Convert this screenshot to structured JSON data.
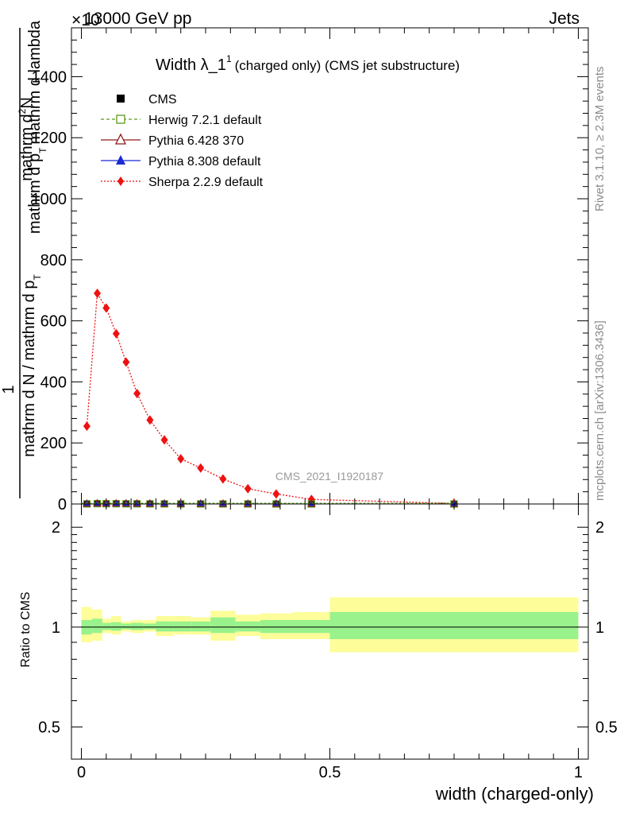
{
  "header": {
    "left": "13000 GeV pp",
    "right": "Jets",
    "exponent": "×10"
  },
  "side_labels": {
    "rivet": "Rivet 3.1.10, ≥ 2.3M events",
    "mcplots": "mcplots.cern.ch [arXiv:1306.3436]"
  },
  "watermark": "CMS_2021_I1920187",
  "chart_data": [
    {
      "type": "line",
      "title_main": "Width λ_1",
      "title_sup": "1",
      "title_rest": "(charged only) (CMS jet substructure)",
      "ylabel_top": "mathrm d",
      "ylabel_top_sup": "2",
      "ylabel_top_end": "N",
      "ylabel_sub": "mathrm d p",
      "ylabel_sub_t": "T",
      "ylabel_sub_end": "mathrm d lambda",
      "ylabel_numer": "1",
      "ylabel_denom": "mathrm d N / mathrm d p",
      "ylabel_denom_t": "T",
      "ylim": [
        0,
        1560
      ],
      "xlim": [
        -0.02,
        1.02
      ],
      "y_ticks": [
        0,
        200,
        400,
        600,
        800,
        1000,
        1200,
        1400
      ],
      "y_tick_labels": [
        "0",
        "200",
        "400",
        "600",
        "800",
        "1000",
        "1200",
        "1400"
      ],
      "legend": [
        {
          "label": "CMS",
          "color": "#000000",
          "marker": "square-filled"
        },
        {
          "label": "Herwig 7.2.1 default",
          "color": "#5a9a1a",
          "marker": "square-open"
        },
        {
          "label": "Pythia 6.428 370",
          "color": "#8b1a1a",
          "marker": "triangle-open"
        },
        {
          "label": "Pythia 8.308 default",
          "color": "#1a2ad6",
          "marker": "triangle-filled"
        },
        {
          "label": "Sherpa 2.2.9 default",
          "color": "#ee1111",
          "marker": "diamond-filled"
        }
      ],
      "series": [
        {
          "name": "Sherpa 2.2.9 default",
          "x": [
            0.011,
            0.032,
            0.05,
            0.07,
            0.09,
            0.112,
            0.138,
            0.167,
            0.2,
            0.24,
            0.285,
            0.335,
            0.392,
            0.463,
            0.75
          ],
          "y": [
            255,
            690,
            642,
            558,
            465,
            362,
            275,
            210,
            148,
            118,
            82,
            50,
            33,
            15,
            2
          ]
        }
      ],
      "points_near_zero": {
        "x": [
          0.011,
          0.032,
          0.05,
          0.07,
          0.09,
          0.112,
          0.138,
          0.167,
          0.2,
          0.24,
          0.285,
          0.335,
          0.392,
          0.463,
          0.75
        ],
        "y": [
          0.4,
          1.1,
          1.0,
          0.9,
          0.7,
          0.6,
          0.45,
          0.35,
          0.24,
          0.19,
          0.13,
          0.08,
          0.05,
          0.025,
          0.003
        ]
      }
    },
    {
      "type": "area",
      "ylabel": "Ratio to CMS",
      "xlabel": "width (charged-only)",
      "ylim": [
        0.4,
        2.35
      ],
      "log_y": true,
      "y_ticks": [
        0.5,
        1,
        2
      ],
      "y_tick_labels": [
        "0.5",
        "1",
        "2"
      ],
      "x_ticks": [
        0,
        0.5,
        1
      ],
      "x_tick_labels": [
        "0",
        "0.5",
        "1"
      ],
      "bins": [
        {
          "x0": 0.0,
          "x1": 0.021,
          "inner": [
            0.95,
            1.05
          ],
          "outer": [
            0.9,
            1.15
          ]
        },
        {
          "x0": 0.021,
          "x1": 0.042,
          "inner": [
            0.96,
            1.06
          ],
          "outer": [
            0.91,
            1.13
          ]
        },
        {
          "x0": 0.042,
          "x1": 0.06,
          "inner": [
            0.98,
            1.03
          ],
          "outer": [
            0.96,
            1.06
          ]
        },
        {
          "x0": 0.06,
          "x1": 0.08,
          "inner": [
            0.975,
            1.035
          ],
          "outer": [
            0.95,
            1.08
          ]
        },
        {
          "x0": 0.08,
          "x1": 0.1,
          "inner": [
            0.985,
            1.025
          ],
          "outer": [
            0.97,
            1.04
          ]
        },
        {
          "x0": 0.1,
          "x1": 0.125,
          "inner": [
            0.98,
            1.03
          ],
          "outer": [
            0.96,
            1.05
          ]
        },
        {
          "x0": 0.125,
          "x1": 0.15,
          "inner": [
            0.985,
            1.025
          ],
          "outer": [
            0.97,
            1.05
          ]
        },
        {
          "x0": 0.15,
          "x1": 0.185,
          "inner": [
            0.97,
            1.04
          ],
          "outer": [
            0.94,
            1.08
          ]
        },
        {
          "x0": 0.185,
          "x1": 0.22,
          "inner": [
            0.97,
            1.04
          ],
          "outer": [
            0.95,
            1.08
          ]
        },
        {
          "x0": 0.22,
          "x1": 0.26,
          "inner": [
            0.97,
            1.04
          ],
          "outer": [
            0.95,
            1.07
          ]
        },
        {
          "x0": 0.26,
          "x1": 0.31,
          "inner": [
            0.96,
            1.07
          ],
          "outer": [
            0.91,
            1.12
          ]
        },
        {
          "x0": 0.31,
          "x1": 0.36,
          "inner": [
            0.97,
            1.04
          ],
          "outer": [
            0.94,
            1.09
          ]
        },
        {
          "x0": 0.36,
          "x1": 0.425,
          "inner": [
            0.96,
            1.05
          ],
          "outer": [
            0.92,
            1.1
          ]
        },
        {
          "x0": 0.425,
          "x1": 0.5,
          "inner": [
            0.96,
            1.05
          ],
          "outer": [
            0.92,
            1.11
          ]
        },
        {
          "x0": 0.5,
          "x1": 1.0,
          "inner": [
            0.92,
            1.11
          ],
          "outer": [
            0.84,
            1.23
          ]
        }
      ],
      "colors": {
        "inner": "#99f28c",
        "outer": "#fdfd9a"
      }
    }
  ]
}
